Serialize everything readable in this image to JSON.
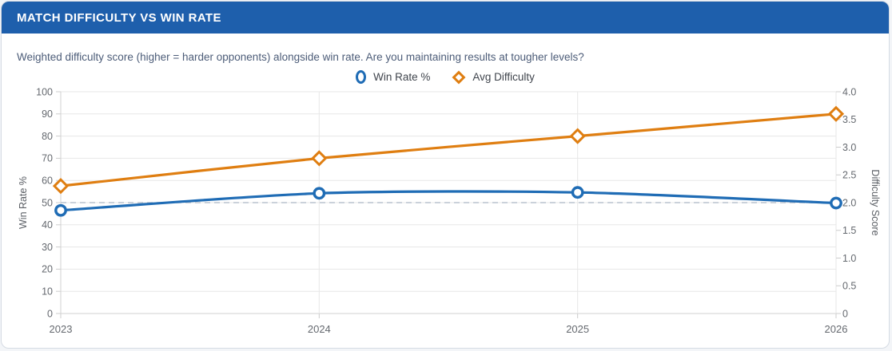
{
  "header": {
    "title": "MATCH DIFFICULTY VS WIN RATE"
  },
  "subtitle": "Weighted difficulty score (higher = harder opponents) alongside win rate. Are you maintaining results at tougher levels?",
  "colors": {
    "header_bg": "#1e5fac",
    "win_rate_line": "#1f6cb5",
    "difficulty_line": "#df7e11",
    "reference_line": "#b9c2ce",
    "grid": "#e7e7e7",
    "axis_border": "#d2d2d2",
    "card_border": "#d5dbe3"
  },
  "chart_data": {
    "type": "line",
    "title": "MATCH DIFFICULTY VS WIN RATE",
    "categories": [
      "2023",
      "2024",
      "2025",
      "2026"
    ],
    "series": [
      {
        "name": "Win Rate %",
        "axis": "left",
        "color": "#1f6cb5",
        "marker": "circle",
        "values": [
          46.5,
          54.2,
          54.6,
          49.8
        ]
      },
      {
        "name": "Avg Difficulty",
        "axis": "right",
        "color": "#df7e11",
        "marker": "diamond",
        "values": [
          2.3,
          2.8,
          3.2,
          3.6
        ]
      }
    ],
    "left_axis": {
      "label": "Win Rate %",
      "min": 0,
      "max": 100,
      "ticks": [
        0,
        10,
        20,
        30,
        40,
        50,
        60,
        70,
        80,
        90,
        100
      ]
    },
    "right_axis": {
      "label": "Difficulty Score",
      "min": 0,
      "max": 4,
      "tick_labels": [
        "0",
        "0.5",
        "1.0",
        "1.5",
        "2.0",
        "2.5",
        "3.0",
        "3.5",
        "4.0"
      ]
    },
    "reference_line": {
      "axis": "left",
      "value": 50,
      "style": "dashed"
    },
    "grid": true,
    "legend_position": "top"
  }
}
